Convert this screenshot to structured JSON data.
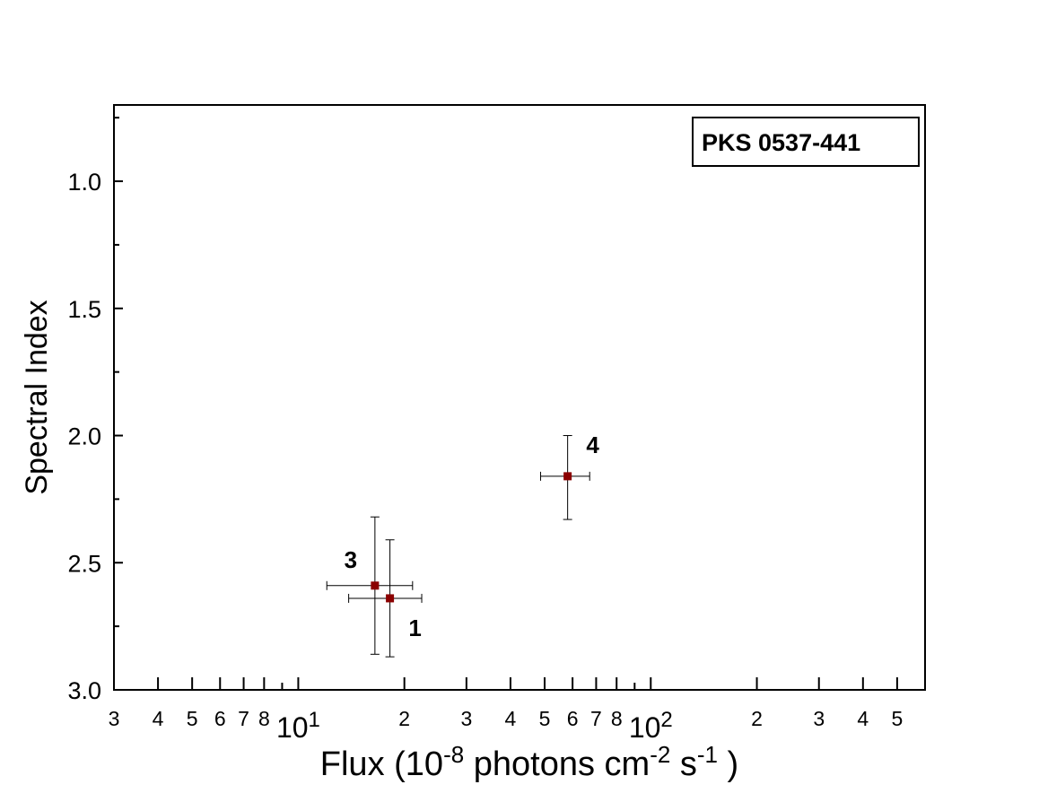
{
  "chart_data": {
    "type": "scatter",
    "legend_text": "PKS 0537-441",
    "xlabel_parts": [
      "Flux  (10",
      "-8",
      " photons  cm",
      "-2",
      " s",
      "-1",
      " )"
    ],
    "ylabel": "Spectral Index",
    "xlog": true,
    "xlim": [
      3,
      600
    ],
    "ylim": [
      3.0,
      0.7
    ],
    "xticks": [
      3,
      4,
      5,
      6,
      7,
      8,
      {
        "value": 10,
        "label": "10",
        "sup": "1"
      },
      {
        "value": 20,
        "label": "2"
      },
      {
        "value": 30,
        "label": "3"
      },
      {
        "value": 40,
        "label": "4"
      },
      {
        "value": 50,
        "label": "5"
      },
      {
        "value": 60,
        "label": "6"
      },
      {
        "value": 70,
        "label": "7"
      },
      {
        "value": 80,
        "label": "8"
      },
      {
        "value": 100,
        "label": "10",
        "sup": "2"
      },
      {
        "value": 200,
        "label": "2"
      },
      {
        "value": 300,
        "label": "3"
      },
      {
        "value": 400,
        "label": "4"
      },
      {
        "value": 500,
        "label": "5"
      }
    ],
    "xminor": [
      9,
      90
    ],
    "yticks": [
      {
        "value": 1,
        "label": "1.0"
      },
      {
        "value": 1.5,
        "label": "1.5"
      },
      {
        "value": 2,
        "label": "2.0"
      },
      {
        "value": 2.5,
        "label": "2.5"
      },
      {
        "value": 3,
        "label": "3.0"
      }
    ],
    "yminor": [
      0.75,
      1.25,
      1.75,
      2.25,
      2.75
    ],
    "points": {
      "color": "#8b0000",
      "labels": [
        "1",
        "3",
        "4"
      ],
      "x": [
        18.2,
        16.5,
        58.1
      ],
      "y": [
        2.64,
        2.59,
        2.16
      ],
      "xlow": [
        13.9,
        12.05,
        48.7
      ],
      "xhigh": [
        22.4,
        21.1,
        67.1
      ],
      "ylow": [
        2.41,
        2.32,
        2.0
      ],
      "yhigh": [
        2.87,
        2.86,
        2.33
      ]
    }
  }
}
